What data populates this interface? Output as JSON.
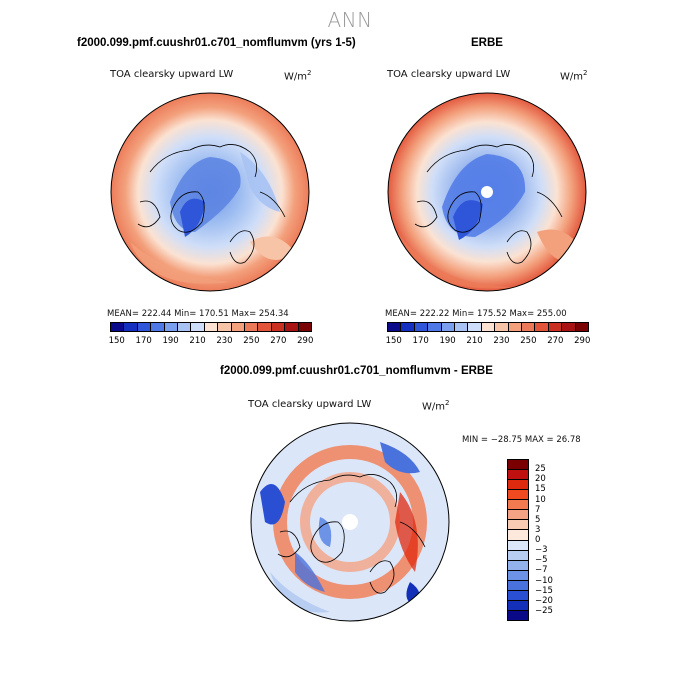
{
  "title": "ANN",
  "panels": [
    {
      "title": "f2000.099.pmf.cuushr01.c701_nomflumvm (yrs 1-5)",
      "variable": "TOA clearsky upward LW",
      "units_base": "W/m",
      "units_exp": "2",
      "stats": "MEAN= 222.44   Min= 170.51   Max= 254.34"
    },
    {
      "title": "ERBE",
      "variable": "TOA clearsky upward LW",
      "units_base": "W/m",
      "units_exp": "2",
      "stats": "MEAN= 222.22   Min= 175.52   Max= 255.00"
    },
    {
      "title": "f2000.099.pmf.cuushr01.c701_nomflumvm - ERBE",
      "variable": "TOA clearsky upward LW",
      "units_base": "W/m",
      "units_exp": "2",
      "stats": "MIN = −28.75 MAX =   26.78"
    }
  ],
  "abs_colorbar": {
    "colors": [
      "#0a0a8a",
      "#1530c0",
      "#2f55d8",
      "#4f79e6",
      "#7a9fee",
      "#a7c2f3",
      "#cfdef8",
      "#fbe2d2",
      "#f8c4a8",
      "#f3a07c",
      "#ec7a58",
      "#e2553b",
      "#c9301f",
      "#a81414",
      "#7a0404"
    ],
    "tick_labels": [
      "150",
      "170",
      "190",
      "210",
      "230",
      "250",
      "270",
      "290"
    ]
  },
  "diff_colorbar": {
    "colors": [
      "#7a0000",
      "#c01010",
      "#e02a10",
      "#f04a20",
      "#f27a50",
      "#f4a484",
      "#f8cbb2",
      "#fde9dc",
      "#dbe6f8",
      "#b8cdf2",
      "#93b2ec",
      "#6d93e6",
      "#4a72dd",
      "#2a4fd2",
      "#1530b8",
      "#0a0a88"
    ],
    "tick_labels": [
      "25",
      "20",
      "15",
      "10",
      "7",
      "5",
      "3",
      "0",
      "−3",
      "−5",
      "−7",
      "−10",
      "−15",
      "−20",
      "−25"
    ]
  }
}
